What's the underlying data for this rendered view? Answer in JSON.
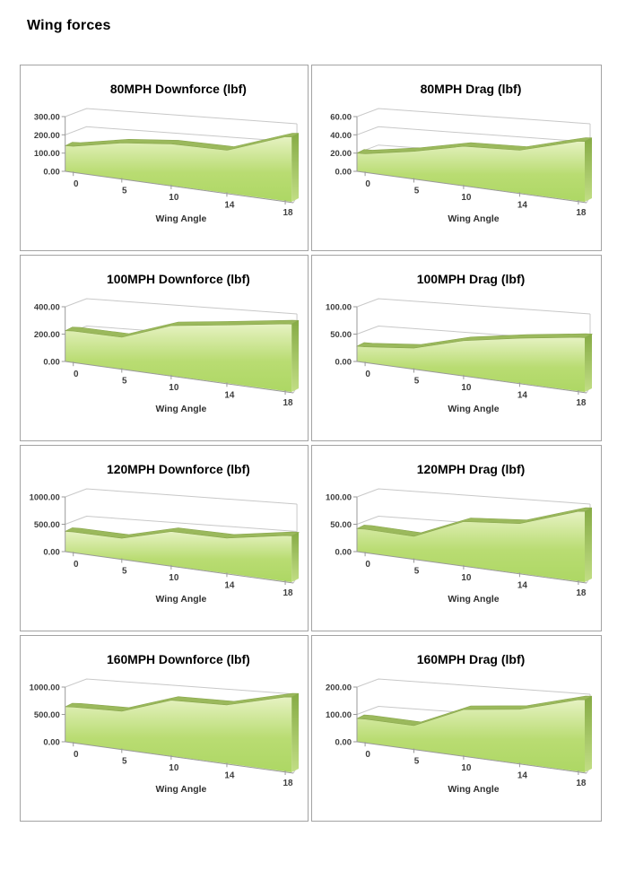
{
  "page": {
    "title": "Wing forces"
  },
  "colors": {
    "area_front_top": "#e6f2c2",
    "area_front_mid": "#b9dc72",
    "area_front_bottom": "#add764",
    "area_ridge": "#9bb95c",
    "area_ridge_stroke": "#8aa74e",
    "area_side_top": "#86ab45",
    "area_side_bottom": "#c2de85",
    "gridline": "#c8c8c8",
    "axis_line": "#999999",
    "tick_text": "#3d3d3d",
    "axis_title_text": "#303030",
    "chart_title_text": "#000000",
    "box_border": "#a3a3a3"
  },
  "chart_data": [
    {
      "type": "area",
      "title": "80MPH Downforce (lbf)",
      "xlabel": "Wing Angle",
      "categories": [
        0,
        5,
        10,
        14,
        18
      ],
      "values": [
        140,
        170,
        175,
        160,
        215
      ],
      "yticks": [
        0,
        100,
        200,
        300
      ],
      "ylim": [
        0,
        300
      ],
      "legend": "none",
      "grid": true
    },
    {
      "type": "area",
      "title": "80MPH Drag (lbf)",
      "xlabel": "Wing Angle",
      "categories": [
        0,
        5,
        10,
        14,
        18
      ],
      "values": [
        20,
        26,
        33,
        32,
        40
      ],
      "yticks": [
        0,
        20,
        40,
        60
      ],
      "ylim": [
        0,
        60
      ],
      "legend": "none",
      "grid": true
    },
    {
      "type": "area",
      "title": "100MPH Downforce (lbf)",
      "xlabel": "Wing Angle",
      "categories": [
        0,
        5,
        10,
        14,
        18
      ],
      "values": [
        225,
        200,
        280,
        290,
        300
      ],
      "yticks": [
        0,
        200,
        400
      ],
      "ylim": [
        0,
        400
      ],
      "legend": "none",
      "grid": true
    },
    {
      "type": "area",
      "title": "100MPH Drag (lbf)",
      "xlabel": "Wing Angle",
      "categories": [
        0,
        5,
        10,
        14,
        18
      ],
      "values": [
        28,
        33,
        49,
        56,
        60
      ],
      "yticks": [
        0,
        50,
        100
      ],
      "ylim": [
        0,
        100
      ],
      "legend": "none",
      "grid": true
    },
    {
      "type": "area",
      "title": "120MPH Downforce (lbf)",
      "xlabel": "Wing Angle",
      "categories": [
        0,
        5,
        10,
        14,
        18
      ],
      "values": [
        370,
        330,
        480,
        440,
        510
      ],
      "yticks": [
        0,
        500,
        1000
      ],
      "ylim": [
        0,
        1000
      ],
      "legend": "none",
      "grid": true
    },
    {
      "type": "area",
      "title": "120MPH Drag (lbf)",
      "xlabel": "Wing Angle",
      "categories": [
        0,
        5,
        10,
        14,
        18
      ],
      "values": [
        42,
        36,
        62,
        62,
        78
      ],
      "yticks": [
        0,
        50,
        100
      ],
      "ylim": [
        0,
        100
      ],
      "legend": "none",
      "grid": true
    },
    {
      "type": "area",
      "title": "160MPH Downforce (lbf)",
      "xlabel": "Wing Angle",
      "categories": [
        0,
        5,
        10,
        14,
        18
      ],
      "values": [
        640,
        600,
        780,
        730,
        830
      ],
      "yticks": [
        0,
        500,
        1000
      ],
      "ylim": [
        0,
        1000
      ],
      "legend": "none",
      "grid": true
    },
    {
      "type": "area",
      "title": "160MPH Drag (lbf)",
      "xlabel": "Wing Angle",
      "categories": [
        0,
        5,
        10,
        14,
        18
      ],
      "values": [
        85,
        75,
        130,
        135,
        160
      ],
      "yticks": [
        0,
        100,
        200
      ],
      "ylim": [
        0,
        200
      ],
      "legend": "none",
      "grid": true
    }
  ]
}
